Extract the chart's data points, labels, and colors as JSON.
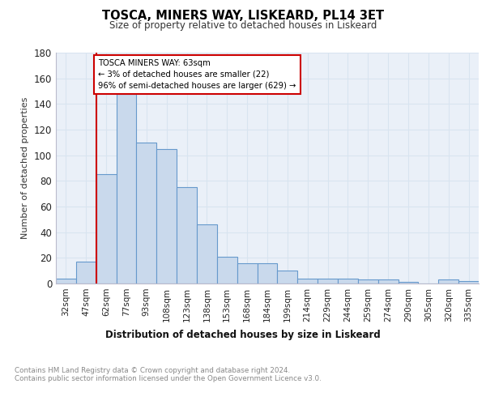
{
  "title": "TOSCA, MINERS WAY, LISKEARD, PL14 3ET",
  "subtitle": "Size of property relative to detached houses in Liskeard",
  "xlabel": "Distribution of detached houses by size in Liskeard",
  "ylabel": "Number of detached properties",
  "categories": [
    "32sqm",
    "47sqm",
    "62sqm",
    "77sqm",
    "93sqm",
    "108sqm",
    "123sqm",
    "138sqm",
    "153sqm",
    "168sqm",
    "184sqm",
    "199sqm",
    "214sqm",
    "229sqm",
    "244sqm",
    "259sqm",
    "274sqm",
    "290sqm",
    "305sqm",
    "320sqm",
    "335sqm"
  ],
  "values": [
    4,
    17,
    85,
    148,
    110,
    105,
    75,
    46,
    21,
    16,
    16,
    10,
    4,
    4,
    4,
    3,
    3,
    1,
    0,
    3,
    2
  ],
  "bar_color": "#c9d9ec",
  "bar_edge_color": "#6699cc",
  "grid_color": "#d8e4f0",
  "annotation_box_text": "TOSCA MINERS WAY: 63sqm\n← 3% of detached houses are smaller (22)\n96% of semi-detached houses are larger (629) →",
  "annotation_box_color": "#ffffff",
  "annotation_box_border": "#cc0000",
  "red_line_color": "#cc0000",
  "footer_text": "Contains HM Land Registry data © Crown copyright and database right 2024.\nContains public sector information licensed under the Open Government Licence v3.0.",
  "ylim": [
    0,
    180
  ],
  "yticks": [
    0,
    20,
    40,
    60,
    80,
    100,
    120,
    140,
    160,
    180
  ],
  "background_color": "#eaf0f8"
}
